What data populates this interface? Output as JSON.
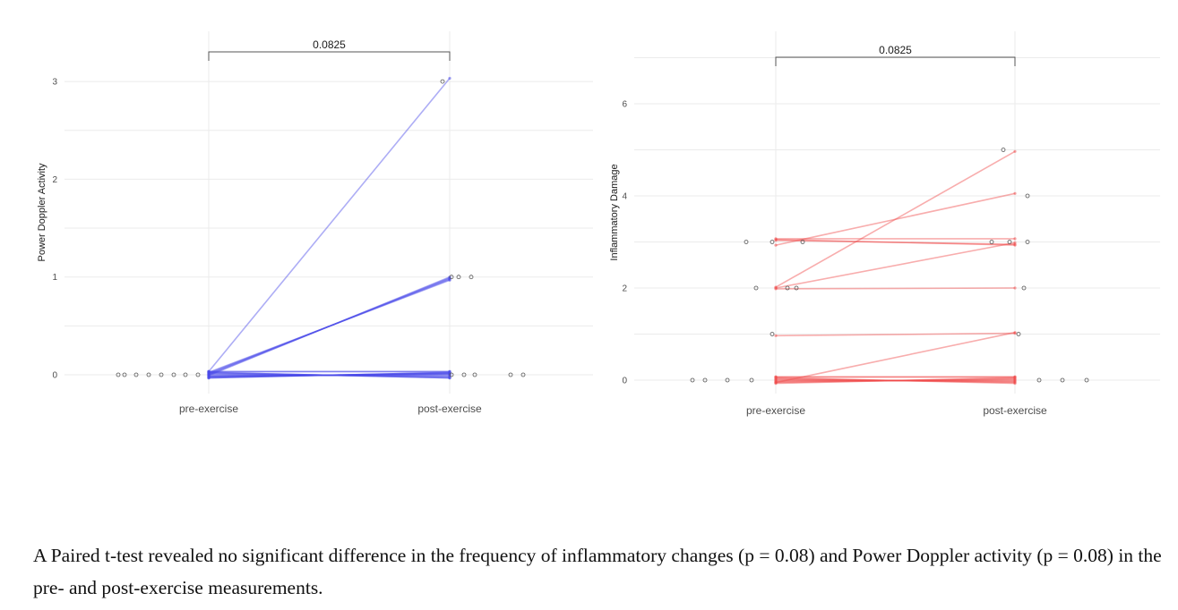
{
  "chart_data": [
    {
      "type": "line",
      "title": "",
      "xlabel": "",
      "ylabel": "Power Doppler Activity",
      "categories": [
        "pre-exercise",
        "post-exercise"
      ],
      "ylim": [
        -0.1,
        3.3
      ],
      "yticks": [
        0,
        1,
        2,
        3
      ],
      "grid": true,
      "line_color": "#4a4ae8",
      "significance_label": "0.0825",
      "paired_values": [
        [
          0,
          3
        ],
        [
          0,
          1
        ],
        [
          0,
          1
        ],
        [
          0,
          1
        ],
        [
          0,
          1
        ],
        [
          0,
          1
        ],
        [
          0,
          0
        ],
        [
          0,
          0
        ],
        [
          0,
          0
        ],
        [
          0,
          0
        ],
        [
          0,
          0
        ],
        [
          0,
          0
        ],
        [
          0,
          0
        ],
        [
          0,
          0
        ],
        [
          0,
          0
        ],
        [
          0,
          0
        ],
        [
          0,
          0
        ],
        [
          0,
          0
        ],
        [
          0,
          0
        ],
        [
          0,
          0
        ]
      ],
      "outlier_points": {
        "pre-exercise": [
          0,
          0,
          0,
          0,
          0,
          0,
          0,
          0
        ],
        "post-exercise": [
          3,
          1,
          1,
          1,
          0,
          0,
          0,
          0,
          0
        ]
      }
    },
    {
      "type": "line",
      "title": "",
      "xlabel": "",
      "ylabel": "Inflammatory Damage",
      "categories": [
        "pre-exercise",
        "post-exercise"
      ],
      "ylim": [
        -0.1,
        7
      ],
      "yticks": [
        0,
        2,
        4,
        6
      ],
      "grid": true,
      "line_color": "#f04a4a",
      "significance_label": "0.0825",
      "paired_values": [
        [
          3,
          3
        ],
        [
          3,
          3
        ],
        [
          3,
          3
        ],
        [
          2,
          5
        ],
        [
          2,
          3
        ],
        [
          2,
          2
        ],
        [
          1,
          1
        ],
        [
          0,
          1
        ],
        [
          3,
          4
        ],
        [
          0,
          0
        ],
        [
          0,
          0
        ],
        [
          0,
          0
        ],
        [
          0,
          0
        ],
        [
          0,
          0
        ],
        [
          0,
          0
        ],
        [
          0,
          0
        ],
        [
          0,
          0
        ],
        [
          0,
          0
        ],
        [
          0,
          0
        ]
      ],
      "outlier_points": {
        "pre-exercise": [
          3,
          3,
          3,
          2,
          2,
          2,
          1,
          0,
          0,
          0,
          0
        ],
        "post-exercise": [
          5,
          4,
          3,
          3,
          3,
          2,
          1,
          0,
          0,
          0
        ]
      }
    }
  ],
  "caption": "A Paired t-test revealed no significant difference in the frequency of inflammatory changes (p = 0.08) and Power Doppler activity (p = 0.08) in the pre- and post-exercise measurements."
}
